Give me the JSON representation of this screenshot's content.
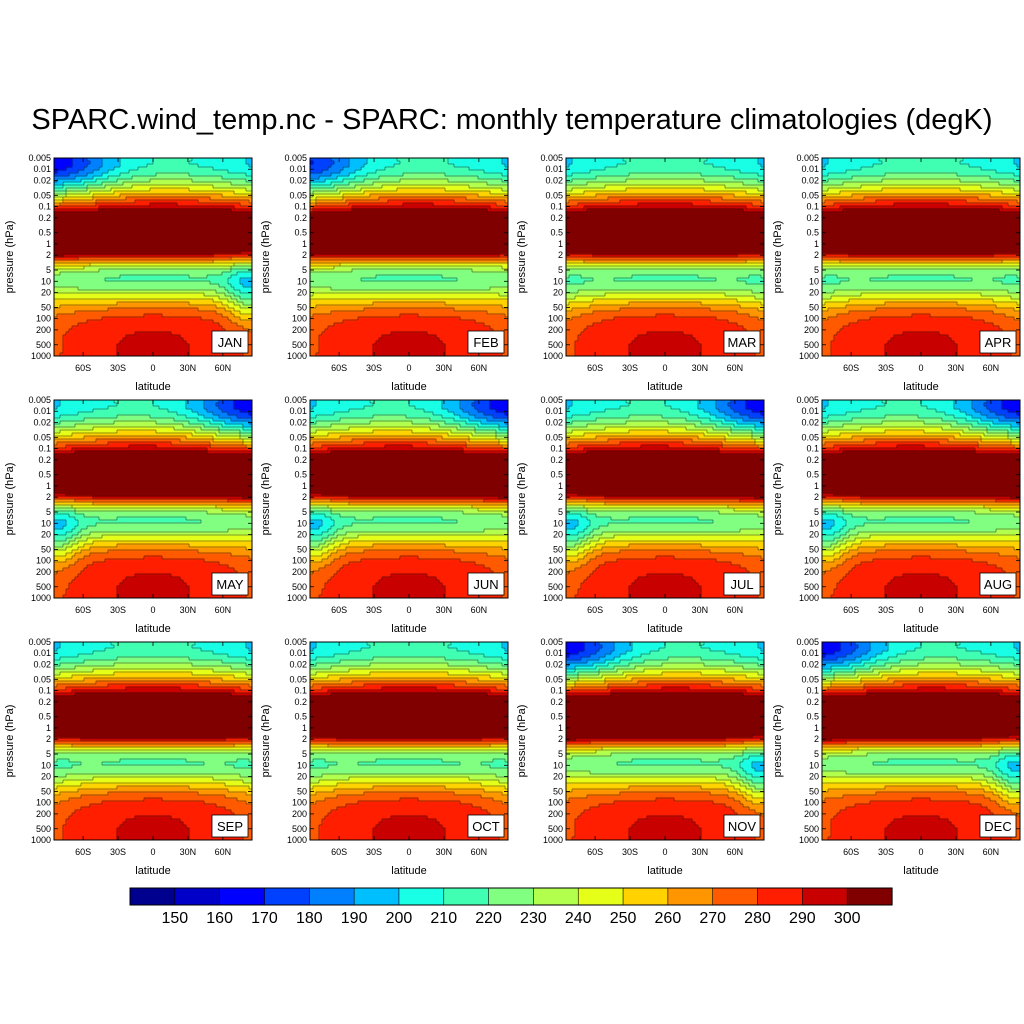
{
  "title": "SPARC.wind_temp.nc - SPARC: monthly temperature climatologies (degK)",
  "chart_data": {
    "type": "heatmap",
    "variant": "filled-contour",
    "panels": [
      {
        "month": "JAN",
        "polar_strat": "warm_south",
        "upper_cold": "south"
      },
      {
        "month": "FEB",
        "polar_strat": "mild_south",
        "upper_cold": "south"
      },
      {
        "month": "MAR",
        "polar_strat": "equinox",
        "upper_cold": "both"
      },
      {
        "month": "APR",
        "polar_strat": "equinox",
        "upper_cold": "north_mid"
      },
      {
        "month": "MAY",
        "polar_strat": "warm_north",
        "upper_cold": "north"
      },
      {
        "month": "JUN",
        "polar_strat": "warm_north",
        "upper_cold": "north"
      },
      {
        "month": "JUL",
        "polar_strat": "warm_north",
        "upper_cold": "north"
      },
      {
        "month": "AUG",
        "polar_strat": "warm_north",
        "upper_cold": "north"
      },
      {
        "month": "SEP",
        "polar_strat": "equinox",
        "upper_cold": "both"
      },
      {
        "month": "OCT",
        "polar_strat": "equinox",
        "upper_cold": "mid"
      },
      {
        "month": "NOV",
        "polar_strat": "warm_south",
        "upper_cold": "south"
      },
      {
        "month": "DEC",
        "polar_strat": "warm_south",
        "upper_cold": "south"
      }
    ],
    "x_axis": {
      "label": "latitude",
      "range": [
        -85,
        85
      ],
      "ticks": [
        -60,
        -30,
        0,
        30,
        60
      ],
      "tick_labels": [
        "60S",
        "30S",
        "0",
        "30N",
        "60N"
      ]
    },
    "y_axis": {
      "label": "pressure (hPa)",
      "scale": "log",
      "inverted": true,
      "range": [
        1000,
        0.005
      ],
      "ticks": [
        0.005,
        0.01,
        0.02,
        0.05,
        0.1,
        0.2,
        0.5,
        1,
        2,
        5,
        10,
        20,
        50,
        100,
        200,
        500,
        1000
      ],
      "tick_labels": [
        "0.005",
        "0.01",
        "0.02",
        "0.05",
        "0.1",
        "0.2",
        "0.5",
        "1",
        "2",
        "5",
        "10",
        "20",
        "50",
        "100",
        "200",
        "500",
        "1000"
      ]
    },
    "colorbar": {
      "levels": [
        150,
        160,
        170,
        180,
        190,
        200,
        210,
        220,
        230,
        240,
        250,
        260,
        270,
        280,
        290,
        300
      ],
      "labels": [
        "150",
        "160",
        "170",
        "180",
        "190",
        "200",
        "210",
        "220",
        "230",
        "240",
        "250",
        "260",
        "270",
        "280",
        "290",
        "300"
      ],
      "colors": [
        "#00008f",
        "#0000c8",
        "#0000ff",
        "#0040ff",
        "#0080ff",
        "#00bfff",
        "#19ffe6",
        "#40ffb2",
        "#80ff80",
        "#b2ff4d",
        "#e6ff19",
        "#ffd200",
        "#ff9600",
        "#ff5a00",
        "#ff1e00",
        "#c80000",
        "#800000"
      ]
    },
    "contour_line_color": "#000000"
  }
}
